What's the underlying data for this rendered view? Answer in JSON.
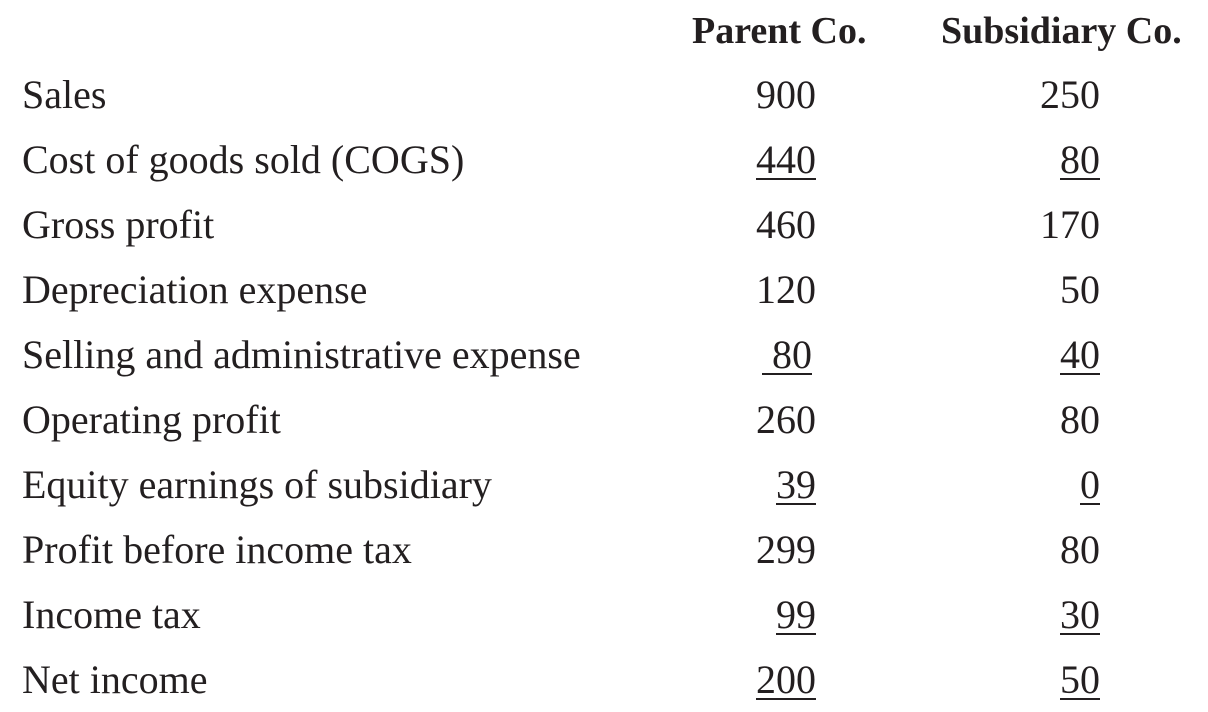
{
  "columns": {
    "parent": "Parent Co.",
    "subsidiary": "Subsidiary Co."
  },
  "rows": [
    {
      "label": "Sales",
      "parent": "900",
      "subsidiary": "250",
      "parent_underlined": false,
      "subsidiary_underlined": false
    },
    {
      "label": "Cost of goods sold (COGS)",
      "parent": "440",
      "subsidiary": "80",
      "parent_underlined": true,
      "subsidiary_underlined": true
    },
    {
      "label": "Gross profit",
      "parent": "460",
      "subsidiary": "170",
      "parent_underlined": false,
      "subsidiary_underlined": false
    },
    {
      "label": "Depreciation expense",
      "parent": "120",
      "subsidiary": "50",
      "parent_underlined": false,
      "subsidiary_underlined": false
    },
    {
      "label": "Selling and administrative expense",
      "parent": " 80",
      "subsidiary": "40",
      "parent_underlined": true,
      "subsidiary_underlined": true
    },
    {
      "label": "Operating profit",
      "parent": "260",
      "subsidiary": "80",
      "parent_underlined": false,
      "subsidiary_underlined": false
    },
    {
      "label": "Equity earnings of subsidiary",
      "parent": "39",
      "subsidiary": "0",
      "parent_underlined": true,
      "subsidiary_underlined": true
    },
    {
      "label": "Profit before income tax",
      "parent": "299",
      "subsidiary": "80",
      "parent_underlined": false,
      "subsidiary_underlined": false
    },
    {
      "label": "Income tax",
      "parent": "99",
      "subsidiary": "30",
      "parent_underlined": true,
      "subsidiary_underlined": true
    },
    {
      "label": "Net income",
      "parent": "200",
      "subsidiary": "50",
      "parent_underlined": true,
      "subsidiary_underlined": true
    }
  ]
}
